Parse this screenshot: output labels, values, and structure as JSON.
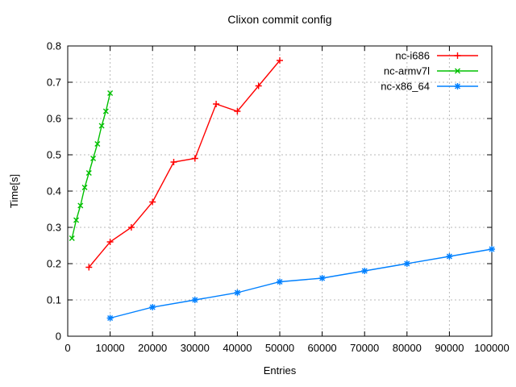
{
  "title": "Clixon commit config",
  "colors": {
    "background": "#ffffff",
    "border": "#000000",
    "grid": "#b8b8b8",
    "text": "#000000",
    "series_red": "#ff0000",
    "series_green": "#00c000",
    "series_blue": "#0080ff"
  },
  "chart_data": {
    "type": "line",
    "title": "Clixon commit config",
    "xlabel": "Entries",
    "ylabel": "Time[s]",
    "xlim": [
      0,
      100000
    ],
    "ylim": [
      0,
      0.8
    ],
    "grid": true,
    "legend_position": "top-right-inside",
    "x_ticks": [
      0,
      10000,
      20000,
      30000,
      40000,
      50000,
      60000,
      70000,
      80000,
      90000,
      100000
    ],
    "x_tick_labels": [
      "0",
      "10000",
      "20000",
      "30000",
      "40000",
      "50000",
      "60000",
      "70000",
      "80000",
      "90000",
      "100000"
    ],
    "y_ticks": [
      0,
      0.1,
      0.2,
      0.3,
      0.4,
      0.5,
      0.6,
      0.7,
      0.8
    ],
    "y_tick_labels": [
      "0",
      "0.1",
      "0.2",
      "0.3",
      "0.4",
      "0.5",
      "0.6",
      "0.7",
      "0.8"
    ],
    "series": [
      {
        "name": "nc-i686",
        "color": "#ff0000",
        "marker": "plus",
        "x": [
          5000,
          10000,
          15000,
          20000,
          25000,
          30000,
          35000,
          40000,
          45000,
          50000
        ],
        "y": [
          0.19,
          0.26,
          0.3,
          0.37,
          0.48,
          0.49,
          0.64,
          0.62,
          0.69,
          0.76
        ]
      },
      {
        "name": "nc-armv7l",
        "color": "#00c000",
        "marker": "cross",
        "x": [
          1000,
          2000,
          3000,
          4000,
          5000,
          6000,
          7000,
          8000,
          9000,
          10000
        ],
        "y": [
          0.27,
          0.32,
          0.36,
          0.41,
          0.45,
          0.49,
          0.53,
          0.58,
          0.62,
          0.67
        ]
      },
      {
        "name": "nc-x86_64",
        "color": "#0080ff",
        "marker": "asterisk",
        "x": [
          10000,
          20000,
          30000,
          40000,
          50000,
          60000,
          70000,
          80000,
          90000,
          100000
        ],
        "y": [
          0.05,
          0.08,
          0.1,
          0.12,
          0.15,
          0.16,
          0.18,
          0.2,
          0.22,
          0.24
        ]
      }
    ]
  }
}
